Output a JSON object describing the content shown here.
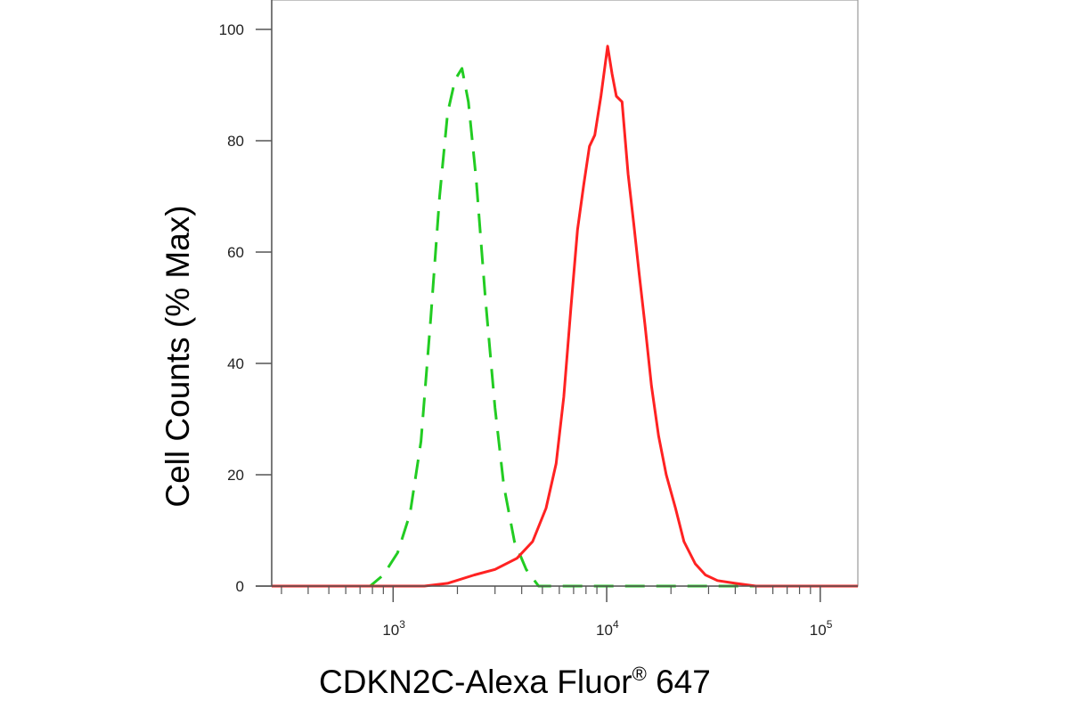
{
  "chart_data": {
    "type": "line",
    "xscale": "log",
    "xlim": [
      270,
      150000
    ],
    "ylim": [
      0,
      100
    ],
    "yticks": [
      0,
      20,
      40,
      60,
      80,
      100
    ],
    "xticks": [
      {
        "value": 1000,
        "base": "10",
        "exp": "3"
      },
      {
        "value": 10000,
        "base": "10",
        "exp": "4"
      },
      {
        "value": 100000,
        "base": "10",
        "exp": "5"
      }
    ],
    "ylabel": "Cell Counts (% Max)",
    "xlabel": {
      "text": "CDKN2C-Alexa Fluor",
      "sup": "®",
      "suffix": " 647"
    },
    "grid": false,
    "series": [
      {
        "style": "dashed",
        "color": "#22cc22",
        "x": [
          270,
          500,
          780,
          900,
          1050,
          1200,
          1350,
          1500,
          1650,
          1800,
          1950,
          2100,
          2250,
          2450,
          2700,
          3000,
          3300,
          3700,
          4200,
          4800,
          5500,
          150000
        ],
        "y": [
          0,
          0,
          0,
          2,
          6,
          13,
          26,
          48,
          70,
          85,
          91,
          93,
          87,
          73,
          52,
          32,
          18,
          8,
          3,
          0,
          0,
          0
        ]
      },
      {
        "style": "solid",
        "color": "#ff2222",
        "x": [
          270,
          1400,
          1800,
          2400,
          3000,
          3800,
          4500,
          5200,
          5800,
          6300,
          6800,
          7300,
          7800,
          8300,
          8800,
          9400,
          10100,
          10600,
          11100,
          11800,
          12600,
          13400,
          14200,
          15100,
          16200,
          17500,
          19000,
          21000,
          23000,
          26000,
          29000,
          33000,
          40000,
          50000,
          150000
        ],
        "y": [
          0,
          0,
          0.5,
          2,
          3,
          5,
          8,
          14,
          22,
          34,
          50,
          64,
          72,
          79,
          81,
          88,
          97,
          92,
          88,
          87,
          74,
          65,
          56,
          47,
          36,
          27,
          20,
          14,
          8,
          4,
          2,
          1,
          0.5,
          0,
          0
        ]
      }
    ]
  }
}
